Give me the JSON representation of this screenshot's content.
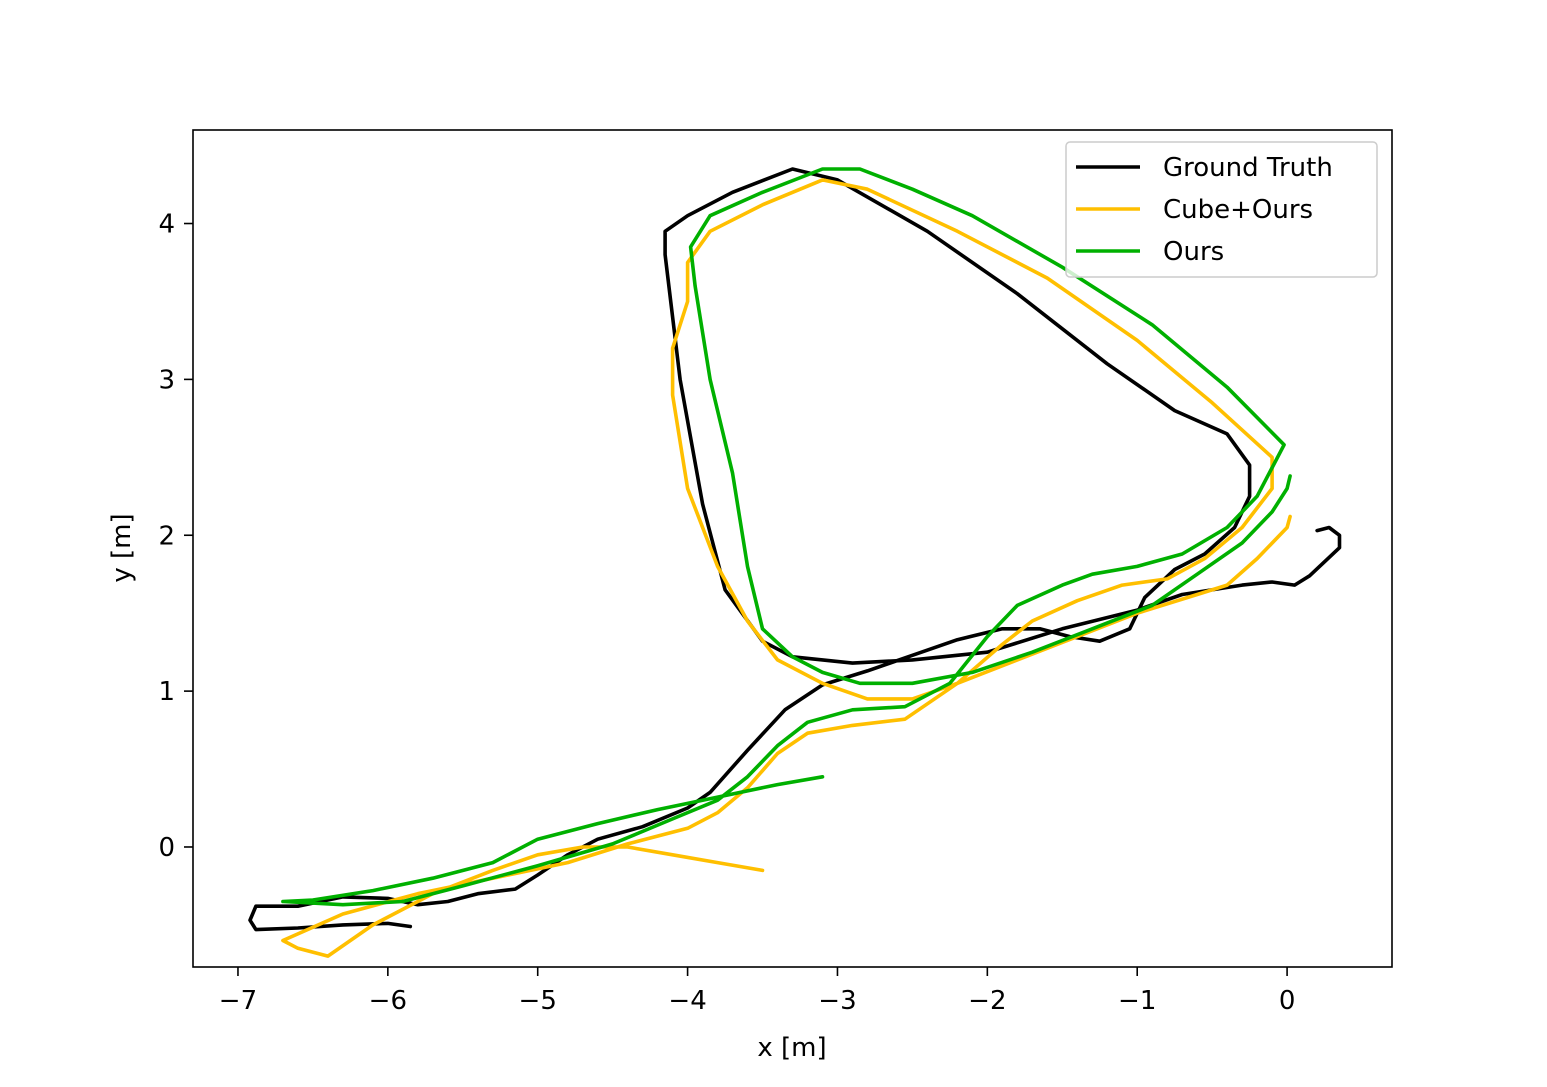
{
  "chart_data": {
    "type": "line",
    "title": "",
    "xlabel": "x [m]",
    "ylabel": "y [m]",
    "xlim": [
      -7.3,
      0.7
    ],
    "ylim": [
      -0.77,
      4.6
    ],
    "x_ticks": [
      {
        "value": -7,
        "label": "−7"
      },
      {
        "value": -6,
        "label": "−6"
      },
      {
        "value": -5,
        "label": "−5"
      },
      {
        "value": -4,
        "label": "−4"
      },
      {
        "value": -3,
        "label": "−3"
      },
      {
        "value": -2,
        "label": "−2"
      },
      {
        "value": -1,
        "label": "−1"
      },
      {
        "value": 0,
        "label": "0"
      }
    ],
    "y_ticks": [
      {
        "value": 0,
        "label": "0"
      },
      {
        "value": 1,
        "label": "1"
      },
      {
        "value": 2,
        "label": "2"
      },
      {
        "value": 3,
        "label": "3"
      },
      {
        "value": 4,
        "label": "4"
      }
    ],
    "grid": false,
    "legend": {
      "position": "top-right"
    },
    "series": [
      {
        "name": "Ground Truth",
        "color": "#000000",
        "points": [
          [
            -5.85,
            -0.51
          ],
          [
            -6.0,
            -0.49
          ],
          [
            -6.3,
            -0.5
          ],
          [
            -6.6,
            -0.52
          ],
          [
            -6.88,
            -0.53
          ],
          [
            -6.92,
            -0.47
          ],
          [
            -6.88,
            -0.38
          ],
          [
            -6.6,
            -0.38
          ],
          [
            -6.3,
            -0.32
          ],
          [
            -6.0,
            -0.33
          ],
          [
            -5.8,
            -0.37
          ],
          [
            -5.6,
            -0.35
          ],
          [
            -5.4,
            -0.3
          ],
          [
            -5.15,
            -0.27
          ],
          [
            -5.0,
            -0.18
          ],
          [
            -4.8,
            -0.05
          ],
          [
            -4.6,
            0.05
          ],
          [
            -4.3,
            0.13
          ],
          [
            -4.0,
            0.25
          ],
          [
            -3.85,
            0.35
          ],
          [
            -3.6,
            0.62
          ],
          [
            -3.35,
            0.88
          ],
          [
            -3.1,
            1.04
          ],
          [
            -2.8,
            1.13
          ],
          [
            -2.5,
            1.23
          ],
          [
            -2.2,
            1.33
          ],
          [
            -1.9,
            1.4
          ],
          [
            -1.65,
            1.4
          ],
          [
            -1.45,
            1.35
          ],
          [
            -1.25,
            1.32
          ],
          [
            -1.05,
            1.4
          ],
          [
            -0.95,
            1.6
          ],
          [
            -0.75,
            1.78
          ],
          [
            -0.55,
            1.88
          ],
          [
            -0.35,
            2.05
          ],
          [
            -0.25,
            2.25
          ],
          [
            -0.25,
            2.45
          ],
          [
            -0.4,
            2.65
          ],
          [
            -0.75,
            2.8
          ],
          [
            -1.2,
            3.1
          ],
          [
            -1.8,
            3.55
          ],
          [
            -2.4,
            3.95
          ],
          [
            -3.0,
            4.28
          ],
          [
            -3.3,
            4.35
          ],
          [
            -3.7,
            4.2
          ],
          [
            -4.0,
            4.05
          ],
          [
            -4.15,
            3.95
          ],
          [
            -4.15,
            3.8
          ],
          [
            -4.05,
            3.0
          ],
          [
            -3.9,
            2.2
          ],
          [
            -3.75,
            1.65
          ],
          [
            -3.5,
            1.32
          ],
          [
            -3.3,
            1.22
          ],
          [
            -2.9,
            1.18
          ],
          [
            -2.5,
            1.2
          ],
          [
            -2.0,
            1.25
          ],
          [
            -1.5,
            1.4
          ],
          [
            -1.0,
            1.52
          ],
          [
            -0.7,
            1.62
          ],
          [
            -0.3,
            1.68
          ],
          [
            -0.1,
            1.7
          ],
          [
            0.05,
            1.68
          ],
          [
            0.15,
            1.74
          ],
          [
            0.35,
            1.92
          ],
          [
            0.35,
            2.0
          ],
          [
            0.28,
            2.05
          ],
          [
            0.2,
            2.03
          ]
        ]
      },
      {
        "name": "Cube+Ours",
        "color": "#ffbf00",
        "points": [
          [
            -3.5,
            -0.15
          ],
          [
            -3.8,
            -0.1
          ],
          [
            -4.1,
            -0.05
          ],
          [
            -4.4,
            0.0
          ],
          [
            -4.7,
            0.0
          ],
          [
            -5.0,
            -0.05
          ],
          [
            -5.3,
            -0.15
          ],
          [
            -5.7,
            -0.3
          ],
          [
            -6.1,
            -0.5
          ],
          [
            -6.4,
            -0.7
          ],
          [
            -6.6,
            -0.65
          ],
          [
            -6.7,
            -0.6
          ],
          [
            -6.3,
            -0.43
          ],
          [
            -5.8,
            -0.3
          ],
          [
            -5.3,
            -0.2
          ],
          [
            -4.8,
            -0.1
          ],
          [
            -4.4,
            0.02
          ],
          [
            -4.0,
            0.12
          ],
          [
            -3.8,
            0.22
          ],
          [
            -3.6,
            0.38
          ],
          [
            -3.4,
            0.6
          ],
          [
            -3.2,
            0.73
          ],
          [
            -2.9,
            0.78
          ],
          [
            -2.55,
            0.82
          ],
          [
            -2.2,
            1.05
          ],
          [
            -1.9,
            1.3
          ],
          [
            -1.7,
            1.45
          ],
          [
            -1.4,
            1.58
          ],
          [
            -1.1,
            1.68
          ],
          [
            -0.8,
            1.72
          ],
          [
            -0.55,
            1.85
          ],
          [
            -0.3,
            2.05
          ],
          [
            -0.1,
            2.3
          ],
          [
            -0.1,
            2.5
          ],
          [
            -0.5,
            2.85
          ],
          [
            -1.0,
            3.25
          ],
          [
            -1.6,
            3.65
          ],
          [
            -2.2,
            3.95
          ],
          [
            -2.8,
            4.22
          ],
          [
            -3.1,
            4.28
          ],
          [
            -3.5,
            4.12
          ],
          [
            -3.85,
            3.95
          ],
          [
            -4.0,
            3.75
          ],
          [
            -4.0,
            3.5
          ],
          [
            -4.1,
            3.2
          ],
          [
            -4.1,
            2.9
          ],
          [
            -4.0,
            2.3
          ],
          [
            -3.8,
            1.8
          ],
          [
            -3.6,
            1.45
          ],
          [
            -3.4,
            1.2
          ],
          [
            -3.1,
            1.05
          ],
          [
            -2.8,
            0.95
          ],
          [
            -2.5,
            0.95
          ],
          [
            -2.2,
            1.05
          ],
          [
            -1.8,
            1.2
          ],
          [
            -1.4,
            1.35
          ],
          [
            -1.0,
            1.5
          ],
          [
            -0.6,
            1.62
          ],
          [
            -0.4,
            1.68
          ],
          [
            -0.2,
            1.85
          ],
          [
            0.0,
            2.05
          ],
          [
            0.02,
            2.12
          ]
        ]
      },
      {
        "name": "Ours",
        "color": "#00b000",
        "points": [
          [
            -3.1,
            0.45
          ],
          [
            -3.4,
            0.4
          ],
          [
            -3.8,
            0.32
          ],
          [
            -4.2,
            0.24
          ],
          [
            -4.6,
            0.15
          ],
          [
            -5.0,
            0.05
          ],
          [
            -5.3,
            -0.1
          ],
          [
            -5.7,
            -0.2
          ],
          [
            -6.1,
            -0.28
          ],
          [
            -6.5,
            -0.34
          ],
          [
            -6.7,
            -0.35
          ],
          [
            -6.3,
            -0.37
          ],
          [
            -5.9,
            -0.35
          ],
          [
            -5.5,
            -0.25
          ],
          [
            -5.0,
            -0.12
          ],
          [
            -4.5,
            0.02
          ],
          [
            -4.1,
            0.18
          ],
          [
            -3.8,
            0.3
          ],
          [
            -3.6,
            0.45
          ],
          [
            -3.4,
            0.65
          ],
          [
            -3.2,
            0.8
          ],
          [
            -2.9,
            0.88
          ],
          [
            -2.55,
            0.9
          ],
          [
            -2.25,
            1.05
          ],
          [
            -2.0,
            1.35
          ],
          [
            -1.8,
            1.55
          ],
          [
            -1.5,
            1.68
          ],
          [
            -1.3,
            1.75
          ],
          [
            -1.0,
            1.8
          ],
          [
            -0.7,
            1.88
          ],
          [
            -0.4,
            2.05
          ],
          [
            -0.2,
            2.25
          ],
          [
            -0.02,
            2.58
          ],
          [
            -0.4,
            2.95
          ],
          [
            -0.9,
            3.35
          ],
          [
            -1.5,
            3.72
          ],
          [
            -2.1,
            4.05
          ],
          [
            -2.5,
            4.22
          ],
          [
            -2.85,
            4.35
          ],
          [
            -3.1,
            4.35
          ],
          [
            -3.5,
            4.2
          ],
          [
            -3.85,
            4.05
          ],
          [
            -3.98,
            3.85
          ],
          [
            -3.95,
            3.6
          ],
          [
            -3.85,
            3.0
          ],
          [
            -3.7,
            2.4
          ],
          [
            -3.6,
            1.8
          ],
          [
            -3.5,
            1.4
          ],
          [
            -3.3,
            1.22
          ],
          [
            -3.1,
            1.12
          ],
          [
            -2.85,
            1.05
          ],
          [
            -2.5,
            1.05
          ],
          [
            -2.1,
            1.12
          ],
          [
            -1.7,
            1.25
          ],
          [
            -1.3,
            1.4
          ],
          [
            -0.9,
            1.55
          ],
          [
            -0.6,
            1.75
          ],
          [
            -0.3,
            1.95
          ],
          [
            -0.1,
            2.15
          ],
          [
            0.0,
            2.3
          ],
          [
            0.02,
            2.38
          ]
        ]
      }
    ]
  }
}
